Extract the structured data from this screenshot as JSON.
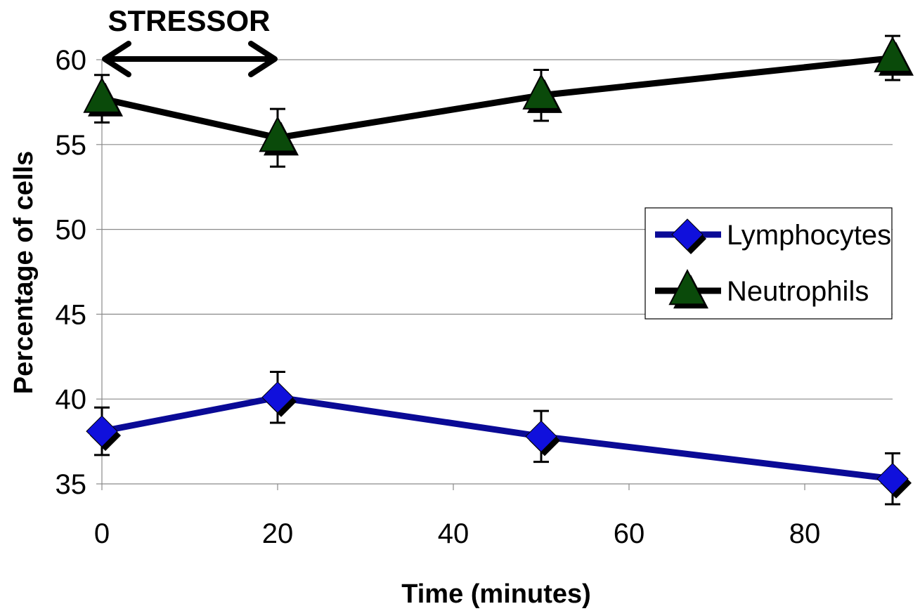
{
  "chart_data": {
    "type": "line",
    "title": "",
    "xlabel": "Time (minutes)",
    "ylabel": "Percentage of cells",
    "xlim": [
      0,
      90
    ],
    "ylim": [
      35,
      60
    ],
    "x_ticks": [
      0,
      20,
      40,
      60,
      80
    ],
    "y_ticks": [
      35,
      40,
      45,
      50,
      55,
      60
    ],
    "grid": "horizontal",
    "legend_position": "right",
    "x": [
      0,
      20,
      50,
      90
    ],
    "series": [
      {
        "name": "Lymphocytes",
        "values": [
          38.1,
          40.1,
          37.8,
          35.3
        ],
        "error": [
          1.4,
          1.5,
          1.5,
          1.5
        ],
        "color": "#0a0a96",
        "marker": "diamond",
        "marker_color": "#1010dc"
      },
      {
        "name": "Neutrophils",
        "values": [
          57.7,
          55.4,
          57.9,
          60.1
        ],
        "error": [
          1.4,
          1.7,
          1.5,
          1.3
        ],
        "color": "#000000",
        "marker": "triangle",
        "marker_color": "#0a4a0a"
      }
    ],
    "annotations": [
      {
        "text": "STRESSOR",
        "x_range": [
          0,
          20
        ],
        "style": "double-arrow"
      }
    ]
  }
}
